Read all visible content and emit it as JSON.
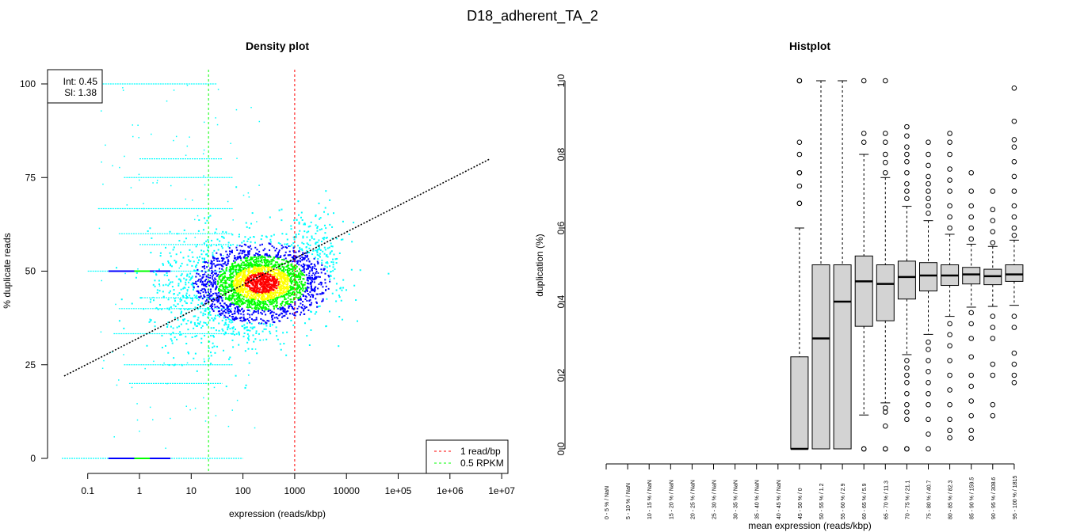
{
  "title": "D18_adherent_TA_2",
  "chart_data": [
    {
      "type": "scatter",
      "title": "Density plot",
      "xlabel": "expression (reads/kbp)",
      "ylabel": "% duplicate reads",
      "xscale": "log10",
      "xlim": [
        0.03,
        10000000
      ],
      "ylim": [
        0,
        100
      ],
      "xticks": [
        0.1,
        1,
        10,
        100,
        1000,
        10000,
        100000,
        1000000,
        10000000
      ],
      "xtick_labels": [
        "0.1",
        "1",
        "10",
        "100",
        "1000",
        "10000",
        "1e+05",
        "1e+06",
        "1e+07"
      ],
      "yticks": [
        0,
        25,
        50,
        75,
        100
      ],
      "ytick_labels": [
        "0",
        "25",
        "50",
        "75",
        "100"
      ],
      "fit": {
        "intercept_label": "Int: 0.45",
        "slope_label": "Sl: 1.38",
        "x": [
          0.035,
          6000000
        ],
        "y": [
          22,
          80
        ],
        "color": "#000000"
      },
      "vlines": [
        {
          "x": 1000,
          "label": "1 read/bp",
          "color": "#ff0000"
        },
        {
          "x": 21.6,
          "label": "0.5 RPKM",
          "color": "#00ff00"
        }
      ],
      "legend_position": "bottom-right",
      "density_clusters": [
        {
          "log10x_mean": 2.35,
          "y_mean": 47,
          "log10x_sd": 0.55,
          "y_sd": 4.5,
          "n": 2200
        },
        {
          "log10x_mean": 1.6,
          "y_mean": 44,
          "log10x_sd": 0.7,
          "y_sd": 8,
          "n": 900
        },
        {
          "log10x_mean": 3.3,
          "y_mean": 55,
          "log10x_sd": 0.35,
          "y_sd": 6,
          "n": 250
        }
      ],
      "streaks": [
        {
          "y": 0,
          "log10x_range": [
            -1.5,
            2.0
          ]
        },
        {
          "y": 100,
          "log10x_range": [
            -0.8,
            1.5
          ]
        },
        {
          "y": 50,
          "log10x_range": [
            -1.0,
            2.5
          ]
        },
        {
          "y": 66.7,
          "log10x_range": [
            -0.8,
            1.8
          ]
        },
        {
          "y": 33.3,
          "log10x_range": [
            -0.5,
            1.8
          ]
        },
        {
          "y": 75,
          "log10x_range": [
            -0.3,
            1.8
          ]
        },
        {
          "y": 25,
          "log10x_range": [
            -0.3,
            1.8
          ]
        },
        {
          "y": 60,
          "log10x_range": [
            -0.4,
            1.8
          ]
        },
        {
          "y": 40,
          "log10x_range": [
            -0.4,
            1.8
          ]
        },
        {
          "y": 20,
          "log10x_range": [
            -0.2,
            1.6
          ]
        },
        {
          "y": 80,
          "log10x_range": [
            0.0,
            1.6
          ]
        },
        {
          "y": 57.1,
          "log10x_range": [
            0.0,
            1.8
          ]
        },
        {
          "y": 42.9,
          "log10x_range": [
            0.0,
            1.8
          ]
        }
      ],
      "density_colors": [
        "#00ffff",
        "#0000ff",
        "#00ff00",
        "#ffff00",
        "#ff0000"
      ]
    },
    {
      "type": "box",
      "title": "Histplot",
      "xlabel": "mean expression (reads/kbp)",
      "ylabel": "duplication (%)",
      "ylim": [
        0,
        1
      ],
      "yticks": [
        "0.0",
        "0.2",
        "0.4",
        "0.6",
        "0.8",
        "1.0"
      ],
      "categories": [
        "0 - 5 % / NaN",
        "5 - 10 % / NaN",
        "10 - 15 % / NaN",
        "15 - 20 % / NaN",
        "20 - 25 % / NaN",
        "25 - 30 % / NaN",
        "30 - 35 % / NaN",
        "35 - 40 % / NaN",
        "40 - 45 % / NaN",
        "45 - 50 % / 0",
        "50 - 55 % / 1.2",
        "55 - 60 % / 2.9",
        "60 - 65 % / 5.9",
        "65 - 70 % / 11.3",
        "70 - 75 % / 21.1",
        "75 - 80 % / 40.7",
        "80 - 85 % / 82.3",
        "85 - 90 % / 159.5",
        "90 - 95 % / 308.6",
        "95 - 100 % / 1815"
      ],
      "boxes": [
        null,
        null,
        null,
        null,
        null,
        null,
        null,
        null,
        null,
        {
          "lower": 0,
          "q1": 0,
          "median": 0,
          "q3": 0.25,
          "upper": 0.6,
          "outliers": [
            0.667,
            0.667,
            0.714,
            0.75,
            0.75,
            0.8,
            0.833,
            1.0,
            1.0
          ]
        },
        {
          "lower": 0,
          "q1": 0,
          "median": 0.3,
          "q3": 0.5,
          "upper": 1.0,
          "outliers": []
        },
        {
          "lower": 0,
          "q1": 0,
          "median": 0.4,
          "q3": 0.5,
          "upper": 1.0,
          "outliers": []
        },
        {
          "lower": 0.092,
          "q1": 0.333,
          "median": 0.455,
          "q3": 0.524,
          "upper": 0.8,
          "outliers": [
            0,
            0,
            0.833,
            0.857,
            1.0
          ]
        },
        {
          "lower": 0.125,
          "q1": 0.348,
          "median": 0.448,
          "q3": 0.5,
          "upper": 0.737,
          "outliers": [
            0,
            0,
            0.062,
            0.1,
            0.111,
            0.75,
            0.778,
            0.8,
            0.833,
            0.857,
            1.0
          ]
        },
        {
          "lower": 0.256,
          "q1": 0.407,
          "median": 0.467,
          "q3": 0.51,
          "upper": 0.659,
          "outliers": [
            0,
            0,
            0.08,
            0.1,
            0.12,
            0.15,
            0.18,
            0.2,
            0.22,
            0.24,
            0.68,
            0.7,
            0.72,
            0.75,
            0.78,
            0.8,
            0.82,
            0.85,
            0.875
          ]
        },
        {
          "lower": 0.311,
          "q1": 0.429,
          "median": 0.471,
          "q3": 0.506,
          "upper": 0.62,
          "outliers": [
            0,
            0.04,
            0.08,
            0.12,
            0.15,
            0.18,
            0.21,
            0.24,
            0.27,
            0.29,
            0.64,
            0.66,
            0.68,
            0.7,
            0.72,
            0.74,
            0.77,
            0.8,
            0.833
          ]
        },
        {
          "lower": 0.36,
          "q1": 0.444,
          "median": 0.471,
          "q3": 0.5,
          "upper": 0.583,
          "outliers": [
            0.03,
            0.05,
            0.08,
            0.12,
            0.16,
            0.2,
            0.24,
            0.28,
            0.31,
            0.34,
            0.6,
            0.63,
            0.66,
            0.7,
            0.73,
            0.76,
            0.8,
            0.833,
            0.857
          ]
        },
        {
          "lower": 0.385,
          "q1": 0.448,
          "median": 0.474,
          "q3": 0.493,
          "upper": 0.556,
          "outliers": [
            0.029,
            0.05,
            0.09,
            0.13,
            0.17,
            0.2,
            0.25,
            0.3,
            0.34,
            0.37,
            0.57,
            0.6,
            0.63,
            0.66,
            0.7,
            0.75
          ]
        },
        {
          "lower": 0.387,
          "q1": 0.446,
          "median": 0.469,
          "q3": 0.488,
          "upper": 0.55,
          "outliers": [
            0.09,
            0.12,
            0.2,
            0.23,
            0.3,
            0.33,
            0.36,
            0.56,
            0.59,
            0.62,
            0.65,
            0.7
          ]
        },
        {
          "lower": 0.39,
          "q1": 0.455,
          "median": 0.474,
          "q3": 0.5,
          "upper": 0.567,
          "outliers": [
            0.18,
            0.2,
            0.23,
            0.26,
            0.33,
            0.36,
            0.58,
            0.6,
            0.63,
            0.66,
            0.7,
            0.74,
            0.78,
            0.82,
            0.84,
            0.89,
            0.98
          ]
        }
      ],
      "box_fill": "#d3d3d3"
    }
  ]
}
